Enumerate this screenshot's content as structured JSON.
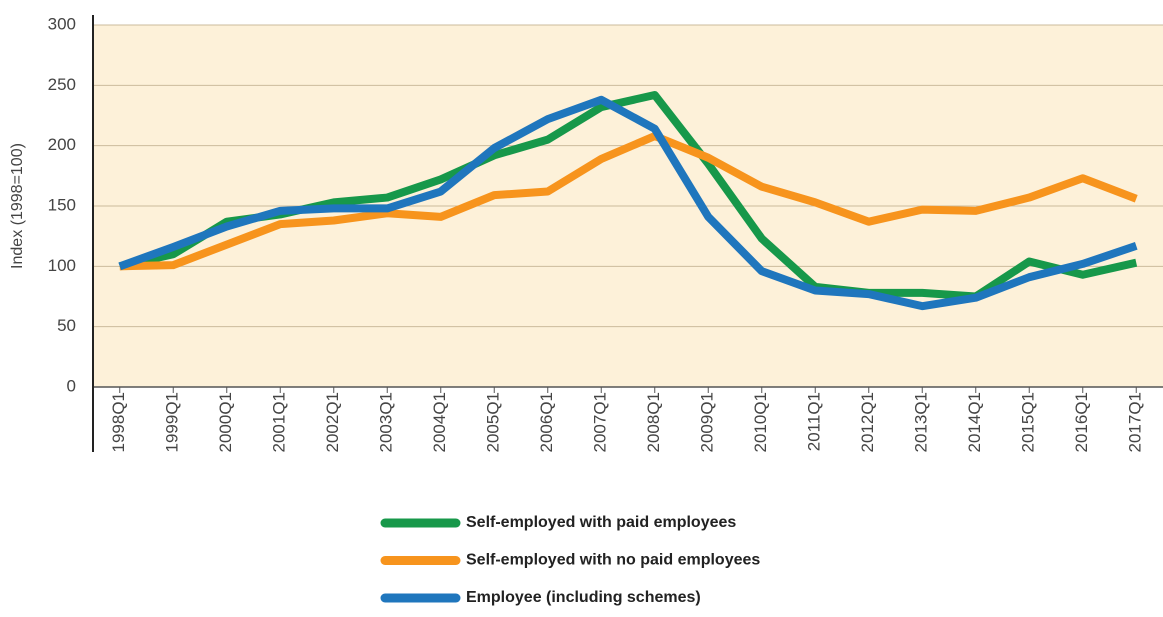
{
  "chart_data": {
    "type": "line",
    "y_label": "Index (1998=100)",
    "categories": [
      "1998Q1",
      "1999Q1",
      "2000Q1",
      "2001Q1",
      "2002Q1",
      "2003Q1",
      "2004Q1",
      "2005Q1",
      "2006Q1",
      "2007Q1",
      "2008Q1",
      "2009Q1",
      "2010Q1",
      "2011Q1",
      "2012Q1",
      "2013Q1",
      "2014Q1",
      "2015Q1",
      "2016Q1",
      "2017Q1"
    ],
    "series": [
      {
        "name": "Self-employed with paid employees",
        "color": "#17984a",
        "values": [
          100,
          110,
          137,
          143,
          153,
          157,
          172,
          192,
          205,
          232,
          242,
          185,
          123,
          83,
          78,
          78,
          75,
          104,
          93,
          103
        ]
      },
      {
        "name": "Self-employed with no paid employees",
        "color": "#f7941d",
        "values": [
          100,
          101,
          118,
          135,
          138,
          144,
          141,
          159,
          162,
          189,
          208,
          190,
          166,
          153,
          137,
          147,
          146,
          157,
          173,
          156
        ]
      },
      {
        "name": "Employee (including schemes)",
        "color": "#1f76bd",
        "values": [
          100,
          116,
          133,
          146,
          148,
          148,
          162,
          198,
          222,
          238,
          214,
          141,
          96,
          80,
          77,
          67,
          74,
          91,
          102,
          117
        ]
      }
    ],
    "ylim": [
      0,
      300
    ],
    "yticks": [
      0,
      50,
      100,
      150,
      200,
      250,
      300
    ],
    "grid": true
  }
}
